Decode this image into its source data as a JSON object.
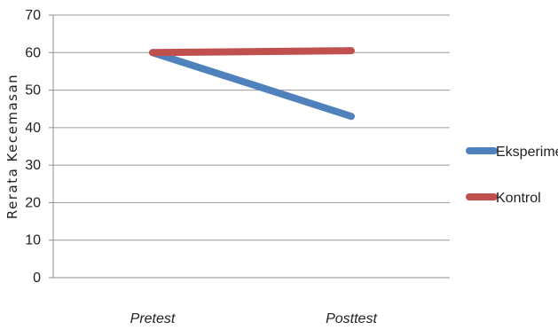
{
  "chart_data": {
    "type": "line",
    "categories": [
      "Pretest",
      "Posttest"
    ],
    "series": [
      {
        "name": "Eksperimen",
        "values": [
          60,
          43
        ],
        "color": "#4f81bd"
      },
      {
        "name": "Kontrol",
        "values": [
          60,
          60.5
        ],
        "color": "#c0504d"
      }
    ],
    "xlabel": "",
    "ylabel": "Rerata Kecemasan",
    "ylim": [
      0,
      70
    ],
    "yticks": [
      "0",
      "10",
      "20",
      "30",
      "40",
      "50",
      "60",
      "70"
    ],
    "grid": true,
    "legend_position": "right"
  }
}
